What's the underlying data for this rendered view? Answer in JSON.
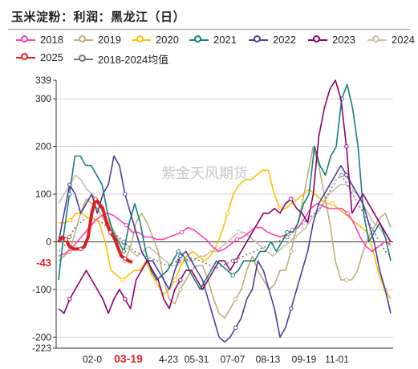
{
  "chart_data": {
    "type": "line",
    "title": "玉米淀粉：利润：黑龙江（日）",
    "watermark": "紫金天风期货",
    "x_ticks": [
      "02-0",
      "03-19",
      "4-23",
      "05-31",
      "07-07",
      "08-13",
      "09-19",
      "11-01"
    ],
    "highlight_x_tick": "03-19",
    "y_ticks": [
      -223,
      -200,
      -100,
      0,
      100,
      200,
      300,
      339
    ],
    "highlight_y": {
      "value": -43,
      "label": "-43",
      "color": "#e02020"
    },
    "ylim": [
      -223,
      339
    ],
    "grid": true,
    "legend_position": "top",
    "series": [
      {
        "name": "2018",
        "color": "#ff3fb1",
        "values": [
          -30,
          -25,
          -15,
          0,
          15,
          30,
          45,
          55,
          60,
          55,
          45,
          35,
          20,
          20,
          10,
          10,
          5,
          5,
          10,
          15,
          20,
          30,
          25,
          15,
          5,
          -10,
          -20,
          -15,
          -5,
          5,
          10,
          20,
          30,
          30,
          20,
          15,
          10,
          15,
          25,
          30,
          50,
          70,
          80,
          75,
          70,
          70,
          70,
          60,
          40,
          10,
          -10,
          -20,
          -10,
          0,
          -5
        ]
      },
      {
        "name": "2019",
        "color": "#bfae7a",
        "values": [
          -40,
          -30,
          -20,
          20,
          60,
          90,
          80,
          70,
          50,
          40,
          10,
          -20,
          -40,
          -10,
          40,
          60,
          40,
          10,
          -20,
          -80,
          -120,
          -130,
          -100,
          -80,
          -60,
          -50,
          -50,
          -80,
          -120,
          -150,
          -160,
          -140,
          -120,
          -100,
          -60,
          -30,
          -60,
          -80,
          -100,
          -90,
          -60,
          -60,
          -20,
          30,
          80,
          140,
          200,
          160,
          100,
          40,
          -40,
          -80,
          -80,
          -80,
          -60,
          -20,
          10,
          30,
          50,
          60,
          30
        ]
      },
      {
        "name": "2020",
        "color": "#ffbf00",
        "values": [
          40,
          40,
          45,
          60,
          60,
          50,
          50,
          40,
          0,
          -60,
          -70,
          -80,
          -70,
          -60,
          -60,
          -40,
          -70,
          -90,
          -110,
          -100,
          -80,
          -50,
          -30,
          -20,
          -30,
          -40,
          -30,
          -10,
          20,
          60,
          100,
          120,
          130,
          130,
          140,
          150,
          150,
          100,
          70,
          70,
          80,
          90,
          100,
          110,
          100,
          90,
          80,
          80,
          70,
          60,
          50,
          40,
          30,
          20,
          -20,
          -70,
          -100,
          -120
        ]
      },
      {
        "name": "2021",
        "color": "#13807e",
        "values": [
          -80,
          20,
          100,
          180,
          180,
          160,
          160,
          140,
          120,
          60,
          20,
          0,
          -20,
          40,
          80,
          40,
          -20,
          -60,
          -80,
          -70,
          -60,
          -40,
          -20,
          -30,
          -60,
          -80,
          -100,
          -80,
          -60,
          -40,
          -50,
          -60,
          -70,
          -60,
          -40,
          -40,
          -40,
          -20,
          -20,
          0,
          -20,
          0,
          20,
          20,
          40,
          80,
          100,
          200,
          160,
          140,
          180,
          200,
          300,
          330,
          280,
          200,
          60,
          0,
          20,
          40,
          10,
          -40
        ]
      },
      {
        "name": "2022",
        "color": "#4c3d9d",
        "values": [
          0,
          60,
          120,
          100,
          60,
          80,
          100,
          60,
          100,
          120,
          180,
          160,
          100,
          60,
          20,
          -20,
          -40,
          -40,
          -60,
          -80,
          -100,
          -60,
          -30,
          -20,
          -40,
          -60,
          -80,
          -120,
          -160,
          -200,
          -210,
          -200,
          -180,
          -160,
          -120,
          -100,
          -40,
          -60,
          -100,
          -140,
          -200,
          -180,
          -140,
          -100,
          -60,
          -20,
          40,
          80,
          100,
          120,
          140,
          160,
          140,
          120,
          100,
          80,
          40,
          0,
          -60,
          -100,
          -150
        ]
      },
      {
        "name": "2023",
        "color": "#8b006e",
        "values": [
          -140,
          -150,
          -120,
          -100,
          -80,
          -60,
          -80,
          -100,
          -120,
          -150,
          -120,
          -100,
          -120,
          -140,
          -80,
          -60,
          -40,
          -60,
          -80,
          -120,
          -140,
          -100,
          -80,
          -60,
          -60,
          -80,
          -100,
          -80,
          -60,
          -40,
          -40,
          -60,
          -40,
          -20,
          0,
          20,
          40,
          60,
          60,
          70,
          60,
          80,
          90,
          70,
          60,
          40,
          100,
          220,
          280,
          320,
          339,
          300,
          200,
          60,
          80,
          100,
          80,
          60,
          40,
          20,
          0
        ]
      },
      {
        "name": "2024",
        "color": "#c9bfa6",
        "values": [
          80,
          100,
          120,
          140,
          130,
          110,
          100,
          80,
          60,
          40,
          20,
          0,
          -10,
          -20,
          -30,
          -20,
          -10,
          -20,
          -30,
          -40,
          -50,
          -50,
          -40,
          -40,
          -40,
          -30,
          -30,
          -20,
          -20,
          -10,
          0,
          10,
          20,
          20,
          10,
          0,
          -10,
          -20,
          -30,
          -20,
          -10,
          0,
          10,
          20,
          30,
          50,
          60,
          80,
          100,
          110,
          120,
          120,
          110,
          100,
          80,
          60,
          40,
          30,
          10,
          -10
        ]
      },
      {
        "name": "2025",
        "color": "#e02020",
        "line_width": 4,
        "values": [
          0,
          10,
          5,
          -10,
          -15,
          -15,
          -15,
          -10,
          10,
          60,
          90,
          80,
          70,
          40,
          20,
          10,
          -10,
          -30,
          -35,
          -40,
          -43
        ]
      },
      {
        "name": "2018-2024均值",
        "color": "#777777",
        "dashed": true,
        "values": [
          -20,
          -10,
          10,
          30,
          40,
          50,
          50,
          45,
          40,
          30,
          20,
          10,
          0,
          -10,
          -20,
          -25,
          -30,
          -35,
          -40,
          -45,
          -50,
          -45,
          -40,
          -40,
          -35,
          -35,
          -40,
          -45,
          -50,
          -55,
          -50,
          -45,
          -40,
          -35,
          -30,
          -25,
          -20,
          -15,
          -10,
          -5,
          0,
          5,
          10,
          20,
          30,
          40,
          50,
          60,
          70,
          90,
          110,
          130,
          140,
          120,
          100,
          80,
          60,
          40,
          20,
          0,
          -20,
          -30
        ]
      }
    ]
  }
}
